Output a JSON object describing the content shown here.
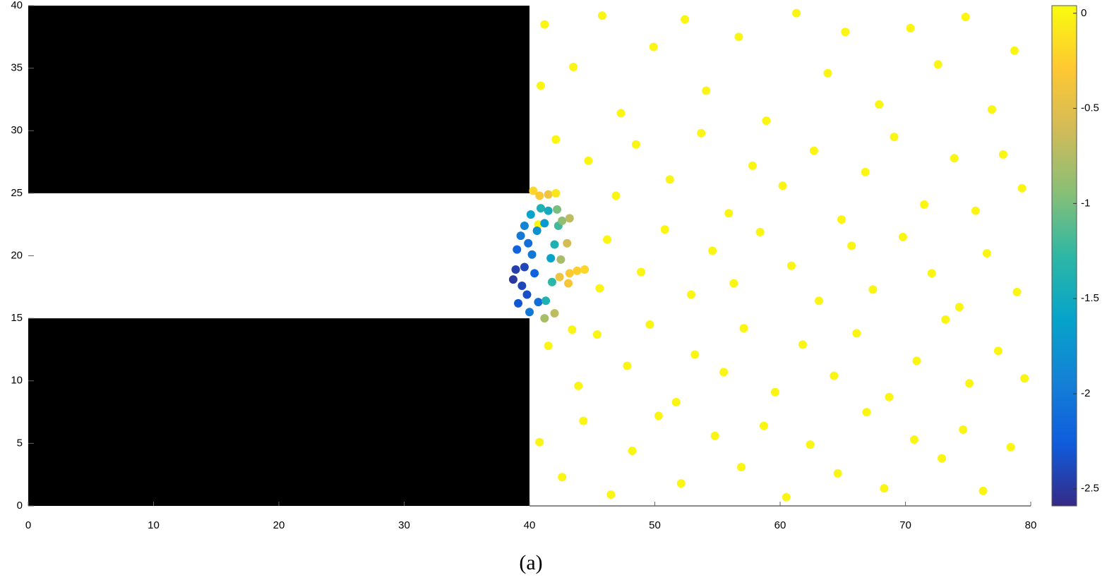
{
  "chart_data": {
    "type": "scatter",
    "caption": "(a)",
    "xlim": [
      0,
      80
    ],
    "ylim": [
      0,
      40
    ],
    "xticks": [
      0,
      10,
      20,
      30,
      40,
      50,
      60,
      70,
      80
    ],
    "yticks": [
      0,
      5,
      10,
      15,
      20,
      25,
      30,
      35,
      40
    ],
    "clim": [
      -2.59,
      0.04
    ],
    "cticks": [
      0,
      -0.5,
      -1,
      -1.5,
      -2,
      -2.5
    ],
    "colormap": [
      "#352a87",
      "#0f5cdd",
      "#1481d6",
      "#06a4ca",
      "#2eb7a4",
      "#87bf77",
      "#d1bb59",
      "#fec832",
      "#f9fb0e"
    ],
    "regions": [
      {
        "x": [
          0,
          40
        ],
        "y": [
          25,
          40
        ],
        "color": "#000000"
      },
      {
        "x": [
          0,
          40
        ],
        "y": [
          0,
          15
        ],
        "color": "#000000"
      }
    ],
    "series": [
      {
        "x": [
          41.2,
          43.5,
          45.8,
          47.3,
          49.9,
          52.4,
          54.1,
          56.7,
          58.9,
          61.3,
          63.8,
          65.2,
          67.9,
          70.4,
          72.6,
          74.8,
          76.9,
          78.7,
          42.1,
          44.7,
          46.9,
          48.5,
          51.2,
          53.7,
          55.9,
          57.8,
          60.2,
          62.7,
          64.9,
          66.8,
          69.1,
          71.5,
          73.9,
          75.6,
          77.8,
          79.3,
          46.2,
          48.9,
          50.8,
          52.9,
          54.6,
          56.3,
          58.4,
          60.9,
          63.1,
          65.7,
          67.4,
          69.8,
          72.1,
          74.3,
          76.5,
          78.9,
          41.5,
          43.9,
          45.4,
          47.8,
          49.6,
          51.7,
          53.2,
          55.5,
          57.1,
          59.6,
          61.8,
          64.3,
          66.1,
          68.7,
          70.9,
          73.2,
          75.1,
          77.4,
          79.5,
          40.8,
          42.6,
          44.3,
          46.5,
          48.2,
          50.3,
          52.1,
          54.8,
          56.9,
          58.7,
          60.5,
          62.4,
          64.6,
          66.9,
          68.3,
          70.7,
          72.9,
          74.6,
          76.2,
          78.4,
          40.9,
          40.7,
          43.4,
          45.6,
          38.7,
          38.9,
          39.4,
          39.1,
          39.8,
          39.6,
          39.0,
          39.3,
          39.9,
          40.2,
          39.6,
          40.1,
          40.6,
          40.9,
          41.5,
          41.2,
          40.4,
          40.7,
          41.3,
          40.0,
          41.8,
          41.7,
          42.0,
          42.3,
          42.2,
          42.6,
          43.0,
          42.5,
          42.4,
          43.2,
          43.8,
          44.4,
          43.1,
          42.0,
          41.5,
          40.3,
          42.1,
          43.2,
          41.2,
          40.8
        ],
        "values": [
          38.5,
          35.1,
          39.2,
          31.4,
          36.7,
          38.9,
          33.2,
          37.5,
          30.8,
          39.4,
          34.6,
          37.9,
          32.1,
          38.2,
          35.3,
          39.1,
          31.7,
          36.4,
          29.3,
          27.6,
          24.8,
          28.9,
          26.1,
          29.8,
          23.4,
          27.2,
          25.6,
          28.4,
          22.9,
          26.7,
          29.5,
          24.1,
          27.8,
          23.6,
          28.1,
          25.4,
          21.3,
          18.7,
          22.1,
          16.9,
          20.4,
          17.8,
          21.9,
          19.2,
          16.4,
          20.8,
          17.3,
          21.5,
          18.6,
          15.9,
          20.2,
          17.1,
          12.8,
          9.6,
          13.7,
          11.2,
          14.5,
          8.3,
          12.1,
          10.7,
          14.2,
          9.1,
          12.9,
          10.4,
          13.8,
          8.7,
          11.6,
          14.9,
          9.8,
          12.4,
          10.2,
          5.1,
          2.3,
          6.8,
          0.9,
          4.4,
          7.2,
          1.8,
          5.6,
          3.1,
          6.4,
          0.7,
          4.9,
          2.6,
          7.5,
          1.4,
          5.3,
          3.8,
          6.1,
          1.2,
          4.7,
          33.6,
          22.5,
          14.1,
          17.4,
          18.1,
          18.9,
          17.6,
          16.2,
          16.9,
          19.1,
          20.5,
          21.6,
          21.0,
          20.1,
          22.4,
          23.3,
          22.0,
          23.8,
          23.6,
          22.6,
          18.6,
          16.3,
          16.4,
          15.5,
          17.9,
          19.8,
          20.9,
          22.4,
          23.7,
          22.8,
          21.0,
          19.7,
          18.3,
          18.6,
          18.8,
          18.9,
          17.8,
          15.4,
          24.9,
          25.2,
          25.0,
          23.0,
          15.0,
          24.8
        ],
        "c": [
          0,
          0,
          0,
          0,
          0,
          0,
          0,
          0,
          0,
          0,
          0,
          0,
          0,
          0,
          0,
          0,
          0,
          0,
          0,
          0,
          0,
          0,
          0,
          0,
          0,
          0,
          0,
          0,
          0,
          0,
          0,
          0,
          0,
          0,
          0,
          0,
          0,
          0,
          0,
          0,
          0,
          0,
          0,
          0,
          0,
          0,
          0,
          0,
          0,
          0,
          0,
          0,
          0,
          0,
          0,
          0,
          0,
          0,
          0,
          0,
          0,
          0,
          0,
          0,
          0,
          0,
          0,
          0,
          0,
          0,
          0,
          0,
          0,
          0,
          0,
          0,
          0,
          0,
          0,
          0,
          0,
          0,
          0,
          0,
          0,
          0,
          0,
          0,
          0,
          0,
          0,
          0,
          0,
          0,
          0,
          -2.5,
          -2.45,
          -2.4,
          -2.3,
          -2.35,
          -2.4,
          -2.2,
          -2.0,
          -2.1,
          -2.0,
          -1.9,
          -1.6,
          -1.8,
          -1.4,
          -1.5,
          -1.7,
          -2.2,
          -2.1,
          -1.4,
          -2.0,
          -1.3,
          -1.6,
          -1.4,
          -1.2,
          -1.0,
          -0.9,
          -0.6,
          -0.8,
          -0.4,
          -0.3,
          -0.25,
          -0.2,
          -0.35,
          -0.7,
          -0.4,
          -0.2,
          -0.1,
          -0.7,
          -0.8,
          -0.3
        ]
      }
    ]
  }
}
